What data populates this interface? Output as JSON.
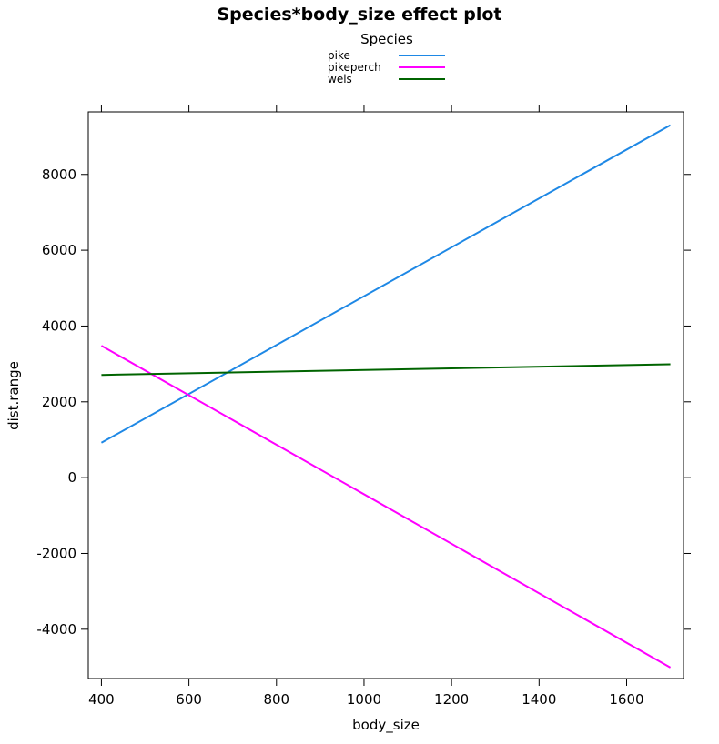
{
  "chart_data": {
    "type": "line",
    "title": "Species*body_size effect plot",
    "xlabel": "body_size",
    "ylabel": "dist.range",
    "xlim": [
      370,
      1730
    ],
    "ylim": [
      -5300,
      9650
    ],
    "x_ticks": [
      400,
      600,
      800,
      1000,
      1200,
      1400,
      1600
    ],
    "y_ticks": [
      -4000,
      -2000,
      0,
      2000,
      4000,
      6000,
      8000
    ],
    "grid": false,
    "legend": {
      "title": "Species",
      "placement": "top-center",
      "entries": [
        "pike",
        "pikeperch",
        "wels"
      ]
    },
    "series": [
      {
        "name": "pike",
        "color": "#1e88e5",
        "x": [
          400,
          1700
        ],
        "y": [
          920,
          9300
        ]
      },
      {
        "name": "pikeperch",
        "color": "#ff00ff",
        "x": [
          400,
          1700
        ],
        "y": [
          3480,
          -5010
        ]
      },
      {
        "name": "wels",
        "color": "#006400",
        "x": [
          400,
          1700
        ],
        "y": [
          2710,
          2990
        ]
      }
    ]
  }
}
